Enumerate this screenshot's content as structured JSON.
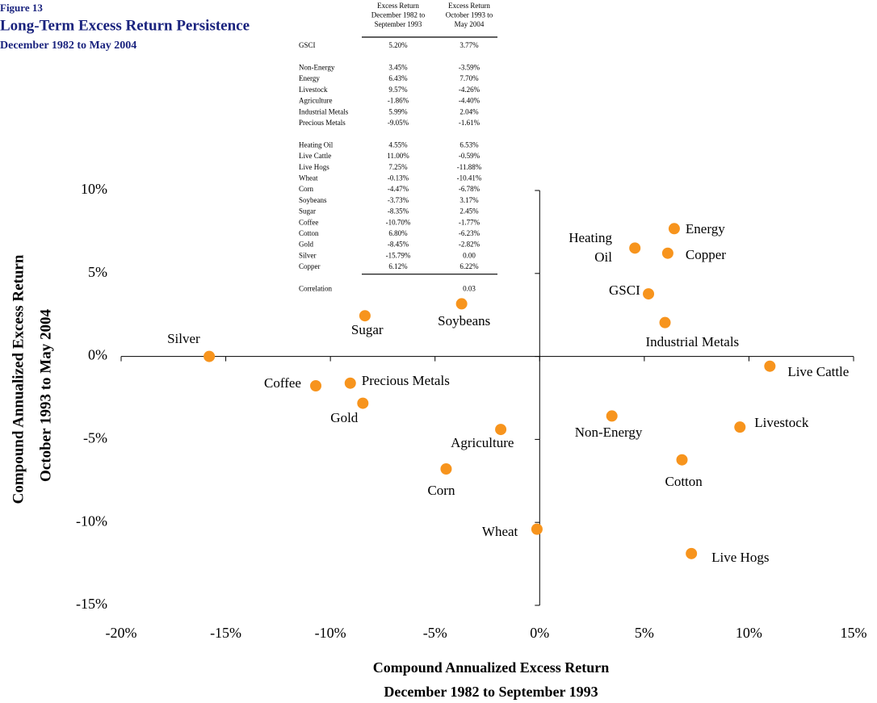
{
  "chart_data": {
    "type": "scatter",
    "figure_label": "Figure 13",
    "title": "Long-Term Excess Return Persistence",
    "subtitle": "December 1982 to May 2004",
    "x_label": [
      "Compound Annualized Excess Return",
      "December 1982 to September 1993"
    ],
    "y_label": [
      "Compound Annualized Excess Return",
      "October 1993 to May 2004"
    ],
    "color": "#f7941d",
    "labels": [
      "GSCI",
      "Non-Energy",
      "Energy",
      "Livestock",
      "Agriculture",
      "Industrial Metals",
      "Precious Metals",
      "Heating\nOil",
      "Live Cattle",
      "Live Hogs",
      "Wheat",
      "Corn",
      "Soybeans",
      "Sugar",
      "Coffee",
      "Cotton",
      "Gold",
      "Silver",
      "Copper"
    ],
    "x": [
      5.2,
      3.45,
      6.43,
      9.57,
      -1.86,
      5.99,
      -9.05,
      4.55,
      11.0,
      7.25,
      -0.13,
      -4.47,
      -3.73,
      -8.35,
      -10.7,
      6.8,
      -8.45,
      -15.79,
      6.12
    ],
    "values": [
      3.77,
      -3.59,
      7.7,
      -4.26,
      -4.4,
      2.04,
      -1.61,
      6.53,
      -0.59,
      -11.88,
      -10.41,
      -6.78,
      3.17,
      2.45,
      -1.77,
      -6.23,
      -2.82,
      0.0,
      6.22
    ],
    "xlim": [
      -20,
      15
    ],
    "xticks": [
      {
        "value": -20,
        "label": "-20%"
      },
      {
        "value": -15,
        "label": "-15%"
      },
      {
        "value": -10,
        "label": "-10%"
      },
      {
        "value": -5,
        "label": "-5%"
      },
      {
        "value": 0,
        "label": "0%"
      },
      {
        "value": 5,
        "label": "5%"
      },
      {
        "value": 10,
        "label": "10%"
      },
      {
        "value": 15,
        "label": "15%"
      }
    ],
    "ylim": [
      -15,
      10
    ],
    "yticks": [
      {
        "value": -15,
        "label": "-15%"
      },
      {
        "value": -10,
        "label": "-10%"
      },
      {
        "value": -5,
        "label": "-5%"
      },
      {
        "value": 0,
        "label": "0%"
      },
      {
        "value": 5,
        "label": "5%"
      },
      {
        "value": 10,
        "label": "10%"
      }
    ],
    "table": {
      "columns": [
        [
          "Excess Return",
          "December 1982 to",
          "September 1993"
        ],
        [
          "Excess Return",
          "October 1993 to",
          "May 2004"
        ]
      ],
      "groups": [
        [
          [
            "GSCI",
            "5.20%",
            "3.77%"
          ]
        ],
        [
          [
            "Non-Energy",
            "3.45%",
            "-3.59%"
          ],
          [
            "Energy",
            "6.43%",
            "7.70%"
          ],
          [
            "Livestock",
            "9.57%",
            "-4.26%"
          ],
          [
            "Agriculture",
            "-1.86%",
            "-4.40%"
          ],
          [
            "Industrial Metals",
            "5.99%",
            "2.04%"
          ],
          [
            "Precious Metals",
            "-9.05%",
            "-1.61%"
          ]
        ],
        [
          [
            "Heating Oil",
            "4.55%",
            "6.53%"
          ],
          [
            "Live Cattle",
            "11.00%",
            "-0.59%"
          ],
          [
            "Live Hogs",
            "7.25%",
            "-11.88%"
          ],
          [
            "Wheat",
            "-0.13%",
            "-10.41%"
          ],
          [
            "Corn",
            "-4.47%",
            "-6.78%"
          ],
          [
            "Soybeans",
            "-3.73%",
            "3.17%"
          ],
          [
            "Sugar",
            "-8.35%",
            "2.45%"
          ],
          [
            "Coffee",
            "-10.70%",
            "-1.77%"
          ],
          [
            "Cotton",
            "6.80%",
            "-6.23%"
          ],
          [
            "Gold",
            "-8.45%",
            "-2.82%"
          ],
          [
            "Silver",
            "-15.79%",
            "0.00"
          ],
          [
            "Copper",
            "6.12%",
            "6.22%"
          ]
        ]
      ],
      "correlation": [
        "Correlation",
        "0.03"
      ]
    }
  }
}
